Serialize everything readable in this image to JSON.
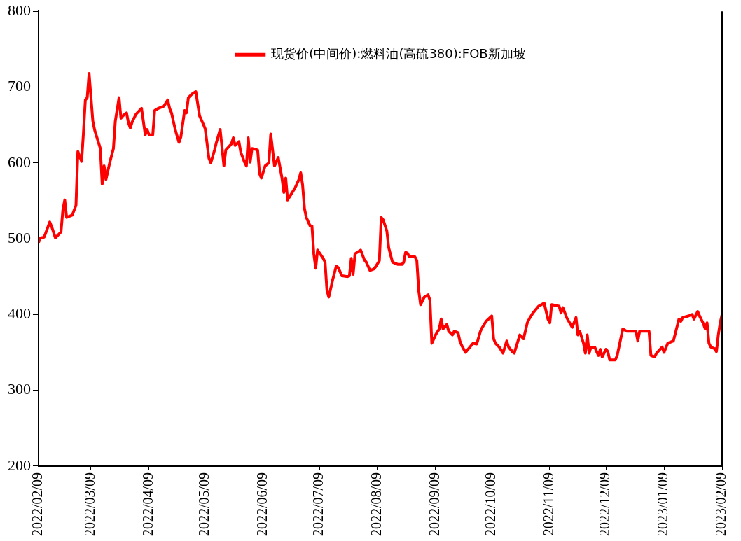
{
  "chart_data": {
    "type": "line",
    "x": [
      "2022-02-09",
      "2022-02-10",
      "2022-02-12",
      "2022-02-15",
      "2022-02-16",
      "2022-02-18",
      "2022-02-21",
      "2022-02-22",
      "2022-02-23",
      "2022-02-24",
      "2022-02-27",
      "2022-03-01",
      "2022-03-02",
      "2022-03-04",
      "2022-03-05",
      "2022-03-06",
      "2022-03-07",
      "2022-03-08",
      "2022-03-10",
      "2022-03-11",
      "2022-03-14",
      "2022-03-15",
      "2022-03-16",
      "2022-03-17",
      "2022-03-19",
      "2022-03-21",
      "2022-03-22",
      "2022-03-24",
      "2022-03-25",
      "2022-03-26",
      "2022-03-28",
      "2022-03-29",
      "2022-03-30",
      "2022-03-31",
      "2022-04-02",
      "2022-04-05",
      "2022-04-07",
      "2022-04-08",
      "2022-04-09",
      "2022-04-11",
      "2022-04-12",
      "2022-04-14",
      "2022-04-17",
      "2022-04-19",
      "2022-04-20",
      "2022-04-21",
      "2022-04-23",
      "2022-04-25",
      "2022-04-26",
      "2022-04-28",
      "2022-04-29",
      "2022-04-30",
      "2022-05-02",
      "2022-05-04",
      "2022-05-06",
      "2022-05-08",
      "2022-05-09",
      "2022-05-11",
      "2022-05-12",
      "2022-05-14",
      "2022-05-15",
      "2022-05-17",
      "2022-05-19",
      "2022-05-20",
      "2022-05-23",
      "2022-05-24",
      "2022-05-25",
      "2022-05-27",
      "2022-05-28",
      "2022-05-30",
      "2022-05-31",
      "2022-06-01",
      "2022-06-02",
      "2022-06-03",
      "2022-06-06",
      "2022-06-07",
      "2022-06-08",
      "2022-06-10",
      "2022-06-12",
      "2022-06-13",
      "2022-06-15",
      "2022-06-17",
      "2022-06-19",
      "2022-06-20",
      "2022-06-21",
      "2022-06-22",
      "2022-06-24",
      "2022-06-26",
      "2022-06-28",
      "2022-06-29",
      "2022-06-30",
      "2022-07-01",
      "2022-07-02",
      "2022-07-04",
      "2022-07-05",
      "2022-07-06",
      "2022-07-07",
      "2022-07-08",
      "2022-07-11",
      "2022-07-12",
      "2022-07-13",
      "2022-07-14",
      "2022-07-16",
      "2022-07-18",
      "2022-07-19",
      "2022-07-21",
      "2022-07-24",
      "2022-07-25",
      "2022-07-26",
      "2022-07-27",
      "2022-07-28",
      "2022-07-31",
      "2022-08-02",
      "2022-08-03",
      "2022-08-05",
      "2022-08-07",
      "2022-08-08",
      "2022-08-10",
      "2022-08-11",
      "2022-08-12",
      "2022-08-14",
      "2022-08-15",
      "2022-08-17",
      "2022-08-20",
      "2022-08-22",
      "2022-08-23",
      "2022-08-24",
      "2022-08-25",
      "2022-08-26",
      "2022-08-29",
      "2022-08-30",
      "2022-08-31",
      "2022-09-01",
      "2022-09-03",
      "2022-09-05",
      "2022-09-06",
      "2022-09-07",
      "2022-09-09",
      "2022-09-11",
      "2022-09-12",
      "2022-09-13",
      "2022-09-15",
      "2022-09-16",
      "2022-09-18",
      "2022-09-19",
      "2022-09-21",
      "2022-09-22",
      "2022-09-23",
      "2022-09-25",
      "2022-09-28",
      "2022-09-29",
      "2022-10-01",
      "2022-10-03",
      "2022-10-04",
      "2022-10-06",
      "2022-10-09",
      "2022-10-10",
      "2022-10-11",
      "2022-10-13",
      "2022-10-15",
      "2022-10-17",
      "2022-10-18",
      "2022-10-20",
      "2022-10-21",
      "2022-10-24",
      "2022-10-26",
      "2022-10-28",
      "2022-10-29",
      "2022-10-31",
      "2022-11-03",
      "2022-11-06",
      "2022-11-08",
      "2022-11-09",
      "2022-11-10",
      "2022-11-14",
      "2022-11-15",
      "2022-11-16",
      "2022-11-18",
      "2022-11-21",
      "2022-11-23",
      "2022-11-24",
      "2022-11-25",
      "2022-11-27",
      "2022-11-28",
      "2022-11-29",
      "2022-11-30",
      "2022-12-01",
      "2022-12-03",
      "2022-12-04",
      "2022-12-05",
      "2022-12-06",
      "2022-12-07",
      "2022-12-09",
      "2022-12-10",
      "2022-12-11",
      "2022-12-14",
      "2022-12-15",
      "2022-12-18",
      "2022-12-20",
      "2022-12-23",
      "2022-12-25",
      "2022-12-26",
      "2022-12-27",
      "2023-01-01",
      "2023-01-02",
      "2023-01-04",
      "2023-01-05",
      "2023-01-08",
      "2023-01-09",
      "2023-01-11",
      "2023-01-14",
      "2023-01-17",
      "2023-01-18",
      "2023-01-19",
      "2023-01-22",
      "2023-01-24",
      "2023-01-25",
      "2023-01-27",
      "2023-01-28",
      "2023-01-30",
      "2023-01-31",
      "2023-02-01",
      "2023-02-02",
      "2023-02-03",
      "2023-02-05",
      "2023-02-06",
      "2023-02-07",
      "2023-02-08",
      "2023-02-09"
    ],
    "series": [
      {
        "name": "现货价(中间价):燃料油(高硫380):FOB新加坡",
        "color": "#ff0000",
        "values": [
          495,
          501,
          502,
          522,
          516,
          501,
          509,
          538,
          551,
          528,
          531,
          544,
          615,
          602,
          640,
          683,
          686,
          718,
          655,
          643,
          619,
          572,
          596,
          578,
          600,
          619,
          655,
          686,
          659,
          662,
          666,
          653,
          646,
          654,
          664,
          672,
          637,
          644,
          637,
          637,
          669,
          672,
          675,
          683,
          672,
          666,
          644,
          627,
          634,
          669,
          666,
          686,
          691,
          694,
          662,
          651,
          645,
          606,
          600,
          617,
          627,
          644,
          596,
          617,
          625,
          633,
          623,
          628,
          614,
          601,
          596,
          633,
          601,
          619,
          617,
          586,
          580,
          596,
          600,
          638,
          596,
          607,
          580,
          561,
          580,
          551,
          559,
          567,
          578,
          587,
          571,
          540,
          528,
          517,
          517,
          480,
          461,
          485,
          474,
          469,
          432,
          423,
          445,
          464,
          462,
          451,
          450,
          451,
          474,
          453,
          480,
          485,
          472,
          469,
          458,
          460,
          463,
          471,
          528,
          525,
          510,
          488,
          469,
          466,
          466,
          469,
          482,
          481,
          476,
          476,
          471,
          432,
          413,
          423,
          426,
          419,
          362,
          373,
          381,
          394,
          381,
          387,
          378,
          373,
          378,
          376,
          365,
          359,
          350,
          359,
          362,
          361,
          378,
          383,
          391,
          398,
          368,
          362,
          357,
          349,
          365,
          357,
          351,
          349,
          373,
          368,
          389,
          394,
          402,
          411,
          415,
          394,
          389,
          413,
          411,
          402,
          409,
          396,
          383,
          396,
          373,
          378,
          362,
          349,
          373,
          349,
          357,
          357,
          351,
          346,
          354,
          344,
          354,
          351,
          340,
          340,
          346,
          381,
          378,
          378,
          378,
          365,
          378,
          378,
          346,
          344,
          349,
          357,
          350,
          362,
          365,
          394,
          391,
          396,
          398,
          400,
          394,
          404,
          398,
          388,
          381,
          389,
          362,
          357,
          355,
          351,
          373,
          389,
          400
        ]
      }
    ],
    "xlim": [
      "2022-02-09",
      "2023-02-09"
    ],
    "xticks": [
      {
        "value": "2022-02-09",
        "label": "2022/02/09"
      },
      {
        "value": "2022-03-09",
        "label": "2022/03/09"
      },
      {
        "value": "2022-04-09",
        "label": "2022/04/09"
      },
      {
        "value": "2022-05-09",
        "label": "2022/05/09"
      },
      {
        "value": "2022-06-09",
        "label": "2022/06/09"
      },
      {
        "value": "2022-07-09",
        "label": "2022/07/09"
      },
      {
        "value": "2022-08-09",
        "label": "2022/08/09"
      },
      {
        "value": "2022-09-09",
        "label": "2022/09/09"
      },
      {
        "value": "2022-10-09",
        "label": "2022/10/09"
      },
      {
        "value": "2022-11-09",
        "label": "2022/11/09"
      },
      {
        "value": "2022-12-09",
        "label": "2022/12/09"
      },
      {
        "value": "2023-01-09",
        "label": "2023/01/09"
      },
      {
        "value": "2023-02-09",
        "label": "2023/02/09"
      }
    ],
    "ylim": [
      200,
      800
    ],
    "yticks": [
      200,
      300,
      400,
      500,
      600,
      700,
      800
    ],
    "grid": false,
    "legend": "top",
    "marker": "none",
    "line_style": "solid"
  }
}
